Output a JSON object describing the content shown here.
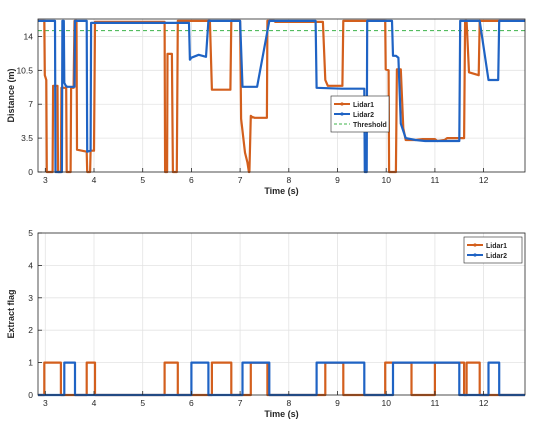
{
  "chart_data": [
    {
      "type": "line",
      "xlabel": "Time (s)",
      "ylabel": "Distance (m)",
      "xlim": [
        2.85,
        12.85
      ],
      "ylim": [
        0,
        15.8
      ],
      "xticks": [
        3,
        4,
        5,
        6,
        7,
        8,
        9,
        10,
        11,
        12
      ],
      "yticks": [
        0,
        3.5,
        7,
        10.5,
        14
      ],
      "ytick_labels": [
        "0",
        "3.5",
        "7",
        "10.5",
        "14"
      ],
      "grid": true,
      "legend_position": "center-right",
      "threshold": {
        "name": "Threshold",
        "value": 14.6,
        "color": "#3cb34a"
      },
      "series": [
        {
          "name": "Lidar1",
          "color": "#d35f1d",
          "x": [
            2.85,
            2.98,
            2.99,
            3.02,
            3.03,
            3.15,
            3.16,
            3.25,
            3.26,
            3.32,
            3.33,
            3.43,
            3.44,
            3.52,
            3.53,
            3.58,
            3.6,
            3.64,
            3.65,
            3.85,
            3.86,
            3.92,
            3.93,
            4.0,
            4.02,
            5.45,
            5.46,
            5.5,
            5.51,
            5.6,
            5.62,
            5.7,
            5.72,
            6.0,
            6.05,
            6.05,
            6.38,
            6.42,
            6.8,
            6.82,
            7.0,
            7.02,
            7.1,
            7.15,
            7.18,
            7.19,
            7.22,
            7.24,
            7.3,
            7.4,
            7.5,
            7.55,
            7.56,
            7.7,
            7.72,
            8.7,
            8.75,
            8.8,
            9.1,
            9.12,
            9.98,
            9.99,
            10.05,
            10.06,
            10.2,
            10.22,
            10.3,
            10.35,
            10.4,
            10.6,
            10.75,
            11.0,
            11.05,
            11.2,
            11.25,
            11.6,
            11.62,
            11.65,
            11.7,
            11.9,
            11.92,
            12.85
          ],
          "values": [
            15.6,
            15.6,
            10,
            9.5,
            0,
            0,
            8.9,
            8.9,
            0,
            0,
            8.7,
            8.7,
            0,
            0,
            8.7,
            8.7,
            15.6,
            15.6,
            2.3,
            2.1,
            0,
            0,
            2.2,
            2.2,
            15.5,
            15.5,
            0,
            0,
            12.2,
            12.2,
            0,
            0,
            15.6,
            15.6,
            15.6,
            15.6,
            15.6,
            8.5,
            8.5,
            15.6,
            15.6,
            5.5,
            2.0,
            1.0,
            0,
            0,
            5.8,
            5.7,
            5.6,
            5.6,
            5.6,
            5.6,
            15.6,
            15.6,
            15.5,
            15.5,
            9.5,
            8.9,
            8.9,
            15.6,
            15.6,
            10.6,
            10.5,
            0,
            0,
            10.6,
            10.6,
            4.5,
            3.3,
            3.3,
            3.4,
            3.4,
            3.2,
            3.3,
            3.5,
            3.5,
            15.6,
            15.6,
            10.3,
            10.0,
            15.6,
            15.6
          ]
        },
        {
          "name": "Lidar2",
          "color": "#1f63c4",
          "x": [
            2.85,
            3.2,
            3.21,
            3.34,
            3.35,
            3.38,
            3.39,
            3.42,
            3.45,
            3.6,
            3.61,
            3.85,
            3.86,
            3.93,
            3.94,
            5.4,
            5.42,
            5.95,
            5.97,
            6.0,
            6.15,
            6.3,
            6.35,
            6.8,
            6.82,
            7.0,
            7.05,
            7.15,
            7.35,
            7.6,
            7.65,
            7.7,
            8.55,
            8.57,
            9.1,
            9.15,
            9.55,
            9.56,
            9.6,
            9.61,
            10.12,
            10.14,
            10.2,
            10.25,
            10.3,
            10.4,
            10.6,
            10.8,
            11.5,
            11.52,
            11.9,
            11.92,
            12.1,
            12.2,
            12.3,
            12.32,
            12.85
          ],
          "values": [
            15.6,
            15.6,
            0,
            0,
            15.6,
            15.6,
            9.2,
            8.9,
            8.8,
            8.8,
            15.6,
            15.6,
            2.1,
            2.2,
            15.4,
            15.4,
            15.4,
            15.4,
            11.6,
            11.8,
            12.1,
            11.9,
            15.6,
            15.6,
            15.6,
            15.6,
            8.8,
            8.8,
            8.8,
            15.6,
            15.6,
            15.6,
            15.6,
            8.7,
            8.6,
            8.6,
            8.6,
            0,
            0,
            15.6,
            15.6,
            12.0,
            12.0,
            11.8,
            5.0,
            3.5,
            3.3,
            3.2,
            3.2,
            15.6,
            15.6,
            15.6,
            9.5,
            9.5,
            9.5,
            15.6,
            15.6
          ]
        }
      ]
    },
    {
      "type": "line",
      "xlabel": "Time (s)",
      "ylabel": "Extract flag",
      "xlim": [
        2.85,
        12.85
      ],
      "ylim": [
        0,
        5
      ],
      "xticks": [
        3,
        4,
        5,
        6,
        7,
        8,
        9,
        10,
        11,
        12
      ],
      "yticks": [
        0,
        1,
        2,
        3,
        4,
        5
      ],
      "grid": true,
      "legend_position": "top-right",
      "series": [
        {
          "name": "Lidar1",
          "color": "#d35f1d",
          "segments": [
            [
              2.98,
              3.32
            ],
            [
              3.85,
              4.02
            ],
            [
              5.45,
              5.72
            ],
            [
              6.42,
              6.82
            ],
            [
              7.22,
              7.56
            ],
            [
              8.75,
              9.12
            ],
            [
              9.98,
              10.52
            ],
            [
              11.0,
              11.6
            ],
            [
              11.65,
              11.92
            ]
          ]
        },
        {
          "name": "Lidar2",
          "color": "#1f63c4",
          "segments": [
            [
              3.39,
              3.61
            ],
            [
              6.0,
              6.35
            ],
            [
              7.05,
              7.6
            ],
            [
              8.57,
              9.55
            ],
            [
              10.14,
              11.5
            ],
            [
              12.1,
              12.32
            ]
          ]
        }
      ]
    }
  ]
}
